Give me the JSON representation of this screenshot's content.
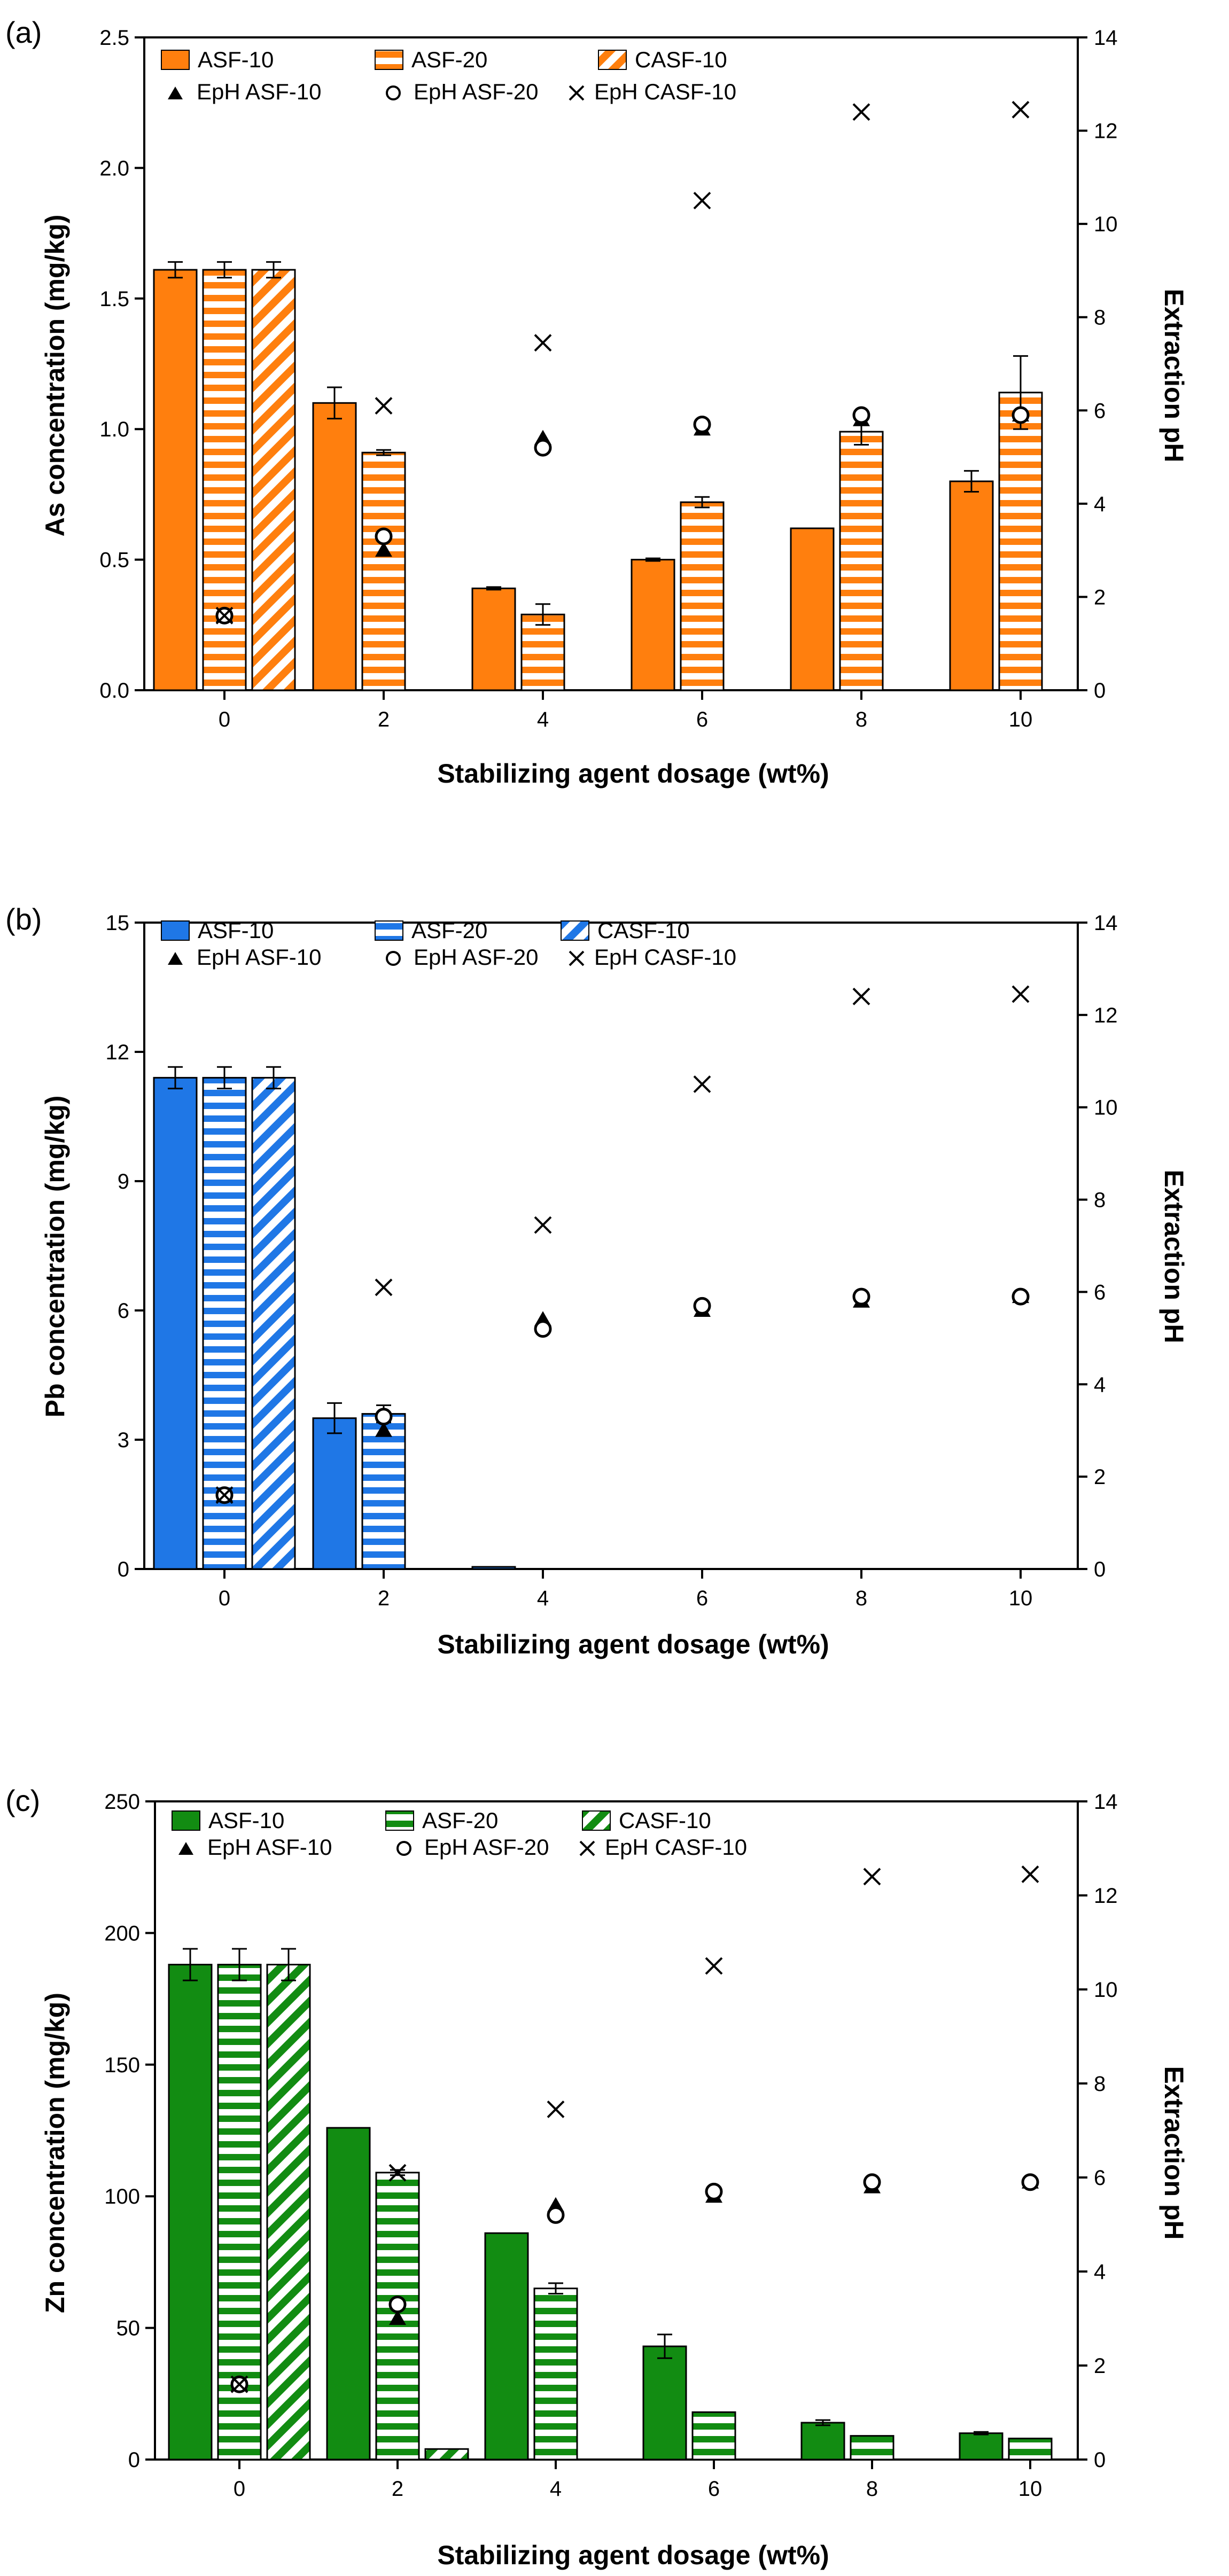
{
  "chart_data": [
    {
      "type": "bar",
      "panel_label": "(a)",
      "title": "",
      "xlabel": "Stabilizing agent dosage (wt%)",
      "ylabel": "As concentration (mg/kg)",
      "ylabel_right": "Extraction pH",
      "categories": [
        "0",
        "2",
        "4",
        "6",
        "8",
        "10"
      ],
      "ylim": [
        0,
        2.5
      ],
      "yticks": [
        "0.0",
        "0.5",
        "1.0",
        "1.5",
        "2.0",
        "2.5"
      ],
      "y2lim": [
        0,
        14
      ],
      "y2ticks": [
        "0",
        "2",
        "4",
        "6",
        "8",
        "10",
        "12",
        "14"
      ],
      "color": "#ff7f0e",
      "series": [
        {
          "name": "ASF-10",
          "fill": "solid",
          "values": [
            1.61,
            1.1,
            0.39,
            0.5,
            0.62,
            0.8
          ],
          "errors": [
            0.03,
            0.06,
            0.005,
            0.005,
            0.0,
            0.04
          ]
        },
        {
          "name": "ASF-20",
          "fill": "horizontal-stripes",
          "values": [
            1.61,
            0.91,
            0.29,
            0.72,
            0.99,
            1.14
          ],
          "errors": [
            0.03,
            0.01,
            0.04,
            0.02,
            0.05,
            0.14
          ]
        },
        {
          "name": "CASF-10",
          "fill": "diagonal-stripes",
          "values": [
            1.61,
            null,
            null,
            null,
            null,
            null
          ],
          "errors": [
            0.03,
            null,
            null,
            null,
            null,
            null
          ]
        }
      ],
      "ph_series": [
        {
          "name": "EpH ASF-10",
          "marker": "triangle",
          "values": [
            1.6,
            3.0,
            5.4,
            5.6,
            5.8,
            5.9
          ]
        },
        {
          "name": "EpH ASF-20",
          "marker": "circle",
          "values": [
            1.6,
            3.3,
            5.2,
            5.7,
            5.9,
            5.9
          ]
        },
        {
          "name": "EpH CASF-10",
          "marker": "x",
          "values": [
            1.6,
            6.1,
            7.45,
            10.5,
            12.4,
            12.45
          ]
        }
      ]
    },
    {
      "type": "bar",
      "panel_label": "(b)",
      "title": "",
      "xlabel": "Stabilizing agent dosage (wt%)",
      "ylabel": "Pb concentration (mg/kg)",
      "ylabel_right": "Extraction pH",
      "categories": [
        "0",
        "2",
        "4",
        "6",
        "8",
        "10"
      ],
      "ylim": [
        0,
        15
      ],
      "yticks": [
        "0",
        "3",
        "6",
        "9",
        "12",
        "15"
      ],
      "y2lim": [
        0,
        14
      ],
      "y2ticks": [
        "0",
        "2",
        "4",
        "6",
        "8",
        "10",
        "12",
        "14"
      ],
      "color": "#1f77e6",
      "series": [
        {
          "name": "ASF-10",
          "fill": "solid",
          "values": [
            11.4,
            3.5,
            0.05,
            null,
            null,
            null
          ],
          "errors": [
            0.25,
            0.35,
            0.0,
            null,
            null,
            null
          ]
        },
        {
          "name": "ASF-20",
          "fill": "horizontal-stripes",
          "values": [
            11.4,
            3.6,
            null,
            null,
            null,
            null
          ],
          "errors": [
            0.25,
            0.2,
            null,
            null,
            null,
            null
          ]
        },
        {
          "name": "CASF-10",
          "fill": "diagonal-stripes",
          "values": [
            11.4,
            null,
            null,
            null,
            null,
            null
          ],
          "errors": [
            0.25,
            null,
            null,
            null,
            null,
            null
          ]
        }
      ],
      "ph_series": [
        {
          "name": "EpH ASF-10",
          "marker": "triangle",
          "values": [
            1.6,
            3.0,
            5.4,
            5.6,
            5.8,
            5.9
          ]
        },
        {
          "name": "EpH ASF-20",
          "marker": "circle",
          "values": [
            1.6,
            3.3,
            5.2,
            5.7,
            5.9,
            5.9
          ]
        },
        {
          "name": "EpH CASF-10",
          "marker": "x",
          "values": [
            1.6,
            6.1,
            7.45,
            10.5,
            12.4,
            12.45
          ]
        }
      ]
    },
    {
      "type": "bar",
      "panel_label": "(c)",
      "title": "",
      "xlabel": "Stabilizing agent dosage (wt%)",
      "ylabel": "Zn concentration (mg/kg)",
      "ylabel_right": "Extraction pH",
      "categories": [
        "0",
        "2",
        "4",
        "6",
        "8",
        "10"
      ],
      "ylim": [
        0,
        250
      ],
      "yticks": [
        "0",
        "50",
        "100",
        "150",
        "200",
        "250"
      ],
      "y2lim": [
        0,
        14
      ],
      "y2ticks": [
        "0",
        "2",
        "4",
        "6",
        "8",
        "10",
        "12",
        "14"
      ],
      "color": "#128c12",
      "series": [
        {
          "name": "ASF-10",
          "fill": "solid",
          "values": [
            188,
            126,
            86,
            43,
            14,
            10
          ],
          "errors": [
            6,
            0,
            0,
            4.5,
            1,
            0.5
          ]
        },
        {
          "name": "ASF-20",
          "fill": "horizontal-stripes",
          "values": [
            188,
            109,
            65,
            18,
            9,
            8
          ],
          "errors": [
            6,
            1,
            2,
            0,
            0,
            0
          ]
        },
        {
          "name": "CASF-10",
          "fill": "diagonal-stripes",
          "values": [
            188,
            4,
            null,
            null,
            null,
            null
          ],
          "errors": [
            6,
            0,
            null,
            null,
            null,
            null
          ]
        }
      ],
      "ph_series": [
        {
          "name": "EpH ASF-10",
          "marker": "triangle",
          "values": [
            1.6,
            3.0,
            5.4,
            5.6,
            5.8,
            5.9
          ]
        },
        {
          "name": "EpH ASF-20",
          "marker": "circle",
          "values": [
            1.6,
            3.3,
            5.2,
            5.7,
            5.9,
            5.9
          ]
        },
        {
          "name": "EpH CASF-10",
          "marker": "x",
          "values": [
            1.6,
            6.1,
            7.45,
            10.5,
            12.4,
            12.45
          ]
        }
      ]
    }
  ]
}
